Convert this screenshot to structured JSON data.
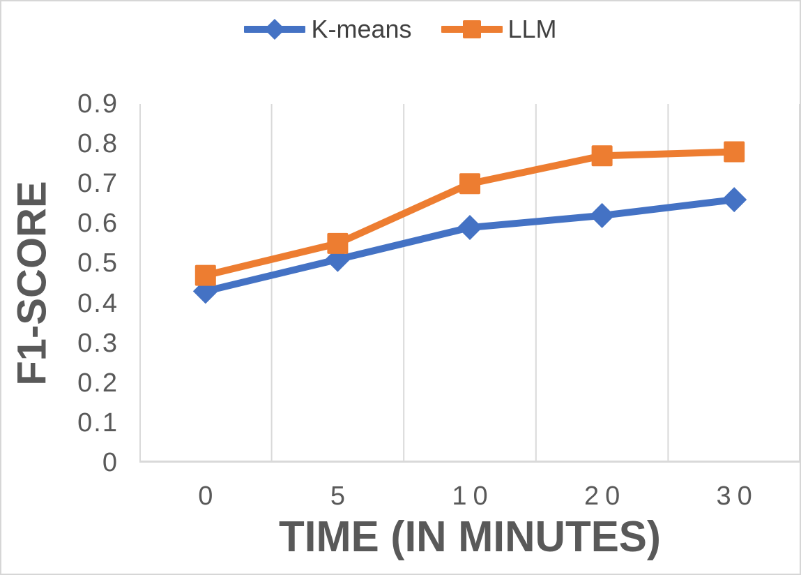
{
  "window": {
    "background": "#ffffff",
    "frame_border_color": "#d6d6d6"
  },
  "chart_data": {
    "type": "line",
    "title": "",
    "xlabel": "TIME (IN MINUTES)",
    "ylabel": "F1-SCORE",
    "categories": [
      "0",
      "5",
      "10",
      "20",
      "30"
    ],
    "ylim": [
      0,
      0.9
    ],
    "ytick_labels": [
      "0.9",
      "0.8",
      "0.7",
      "0.6",
      "0.5",
      "0.4",
      "0.3",
      "0.2",
      "0.1",
      "0"
    ],
    "grid": "vertical-category-boundaries-only",
    "gridline_color": "#d9d9d9",
    "axis_line_color": "#d9d9d9",
    "tick_label_color": "#595959",
    "axis_title_color": "#595959",
    "legend_position": "top-center",
    "series": [
      {
        "name": "K-means",
        "color": "#4472C4",
        "marker": "diamond",
        "values": [
          0.43,
          0.51,
          0.59,
          0.62,
          0.66
        ]
      },
      {
        "name": "LLM",
        "color": "#ED7D31",
        "marker": "square",
        "values": [
          0.47,
          0.55,
          0.7,
          0.77,
          0.78
        ]
      }
    ]
  }
}
